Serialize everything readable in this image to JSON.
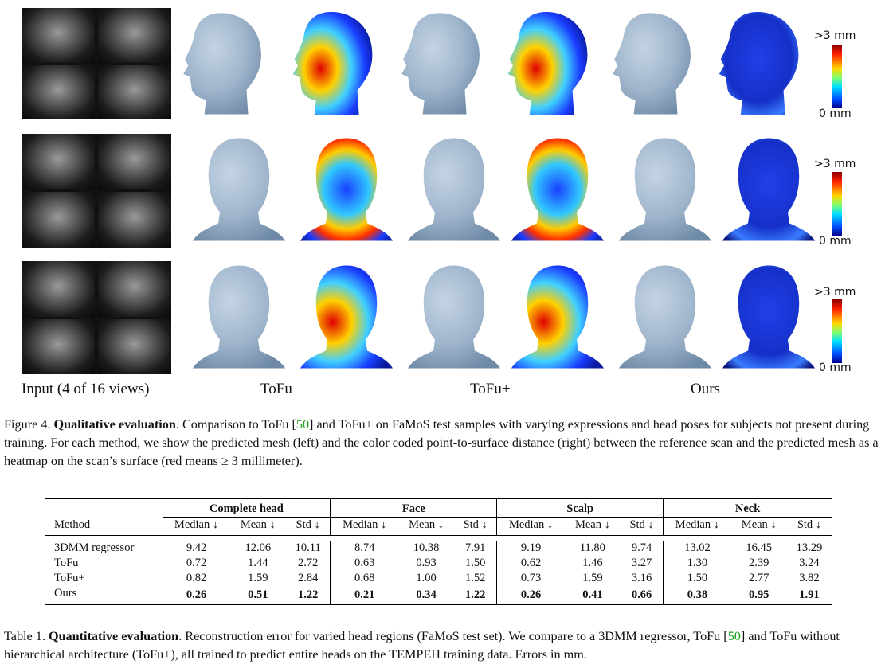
{
  "figure": {
    "columns": [
      "Input (4 of 16 views)",
      "ToFu",
      "ToFu+",
      "Ours"
    ],
    "colorbar": {
      "max_label": ">3 mm",
      "min_label": "0 mm"
    },
    "caption": {
      "prefix": "Figure 4.",
      "title": "Qualitative evaluation",
      "text1": ". Comparison to ToFu [",
      "ref": "50",
      "text2": "] and ToFu+ on FaMoS test samples with varying expressions and head poses for subjects not present during training. For each method, we show the predicted mesh (left) and the color coded point-to-surface distance (right) between the reference scan and the predicted mesh as a heatmap on the scan’s surface (red means ≥ 3 millimeter)."
    }
  },
  "table": {
    "groups": [
      "Complete head",
      "Face",
      "Scalp",
      "Neck"
    ],
    "method_header": "Method",
    "subheaders": [
      "Median ↓",
      "Mean ↓",
      "Std ↓",
      "Median ↓",
      "Mean ↓",
      "Std ↓",
      "Median ↓",
      "Mean ↓",
      "Std ↓",
      "Median ↓",
      "Mean ↓",
      "Std ↓"
    ],
    "rows": [
      {
        "method": "3DMM regressor",
        "values": [
          "9.42",
          "12.06",
          "10.11",
          "8.74",
          "10.38",
          "7.91",
          "9.19",
          "11.80",
          "9.74",
          "13.02",
          "16.45",
          "13.29"
        ]
      },
      {
        "method": "ToFu",
        "values": [
          "0.72",
          "1.44",
          "2.72",
          "0.63",
          "0.93",
          "1.50",
          "0.62",
          "1.46",
          "3.27",
          "1.30",
          "2.39",
          "3.24"
        ]
      },
      {
        "method": "ToFu+",
        "values": [
          "0.82",
          "1.59",
          "2.84",
          "0.68",
          "1.00",
          "1.52",
          "0.73",
          "1.59",
          "3.16",
          "1.50",
          "2.77",
          "3.82"
        ]
      },
      {
        "method": "Ours",
        "values": [
          "0.26",
          "0.51",
          "1.22",
          "0.21",
          "0.34",
          "1.22",
          "0.26",
          "0.41",
          "0.66",
          "0.38",
          "0.95",
          "1.91"
        ]
      }
    ],
    "caption": {
      "prefix": "Table 1.",
      "title": "Quantitative evaluation",
      "text1": ". Reconstruction error for varied head regions (FaMoS test set). We compare to a 3DMM regressor, ToFu [",
      "ref": "50",
      "text2": "] and ToFu without hierarchical architecture (ToFu+), all trained to predict entire heads on the TEMPEH training data. Errors in mm."
    }
  }
}
